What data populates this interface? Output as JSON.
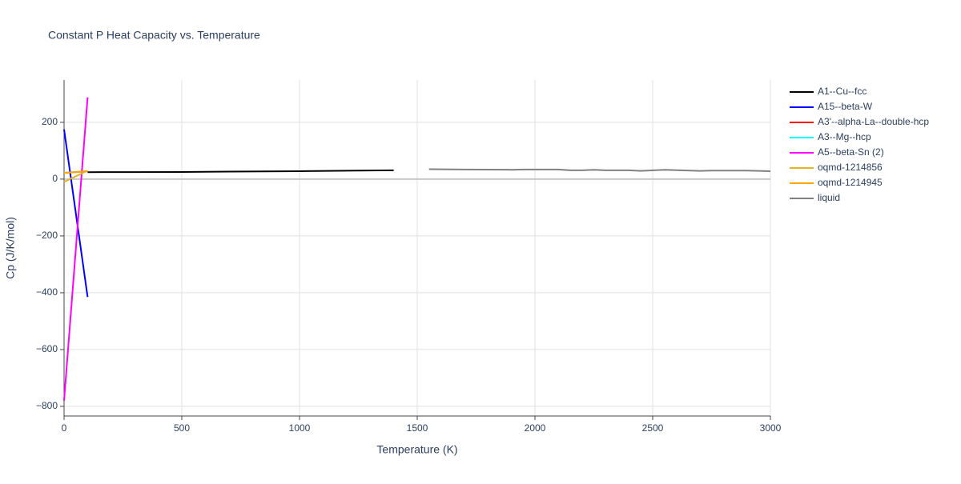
{
  "chart_data": {
    "type": "line",
    "title": "Constant P Heat Capacity vs. Temperature",
    "x_label": "Temperature (K)",
    "y_label": "Cp (J/K/mol)",
    "xlim": [
      0,
      3000
    ],
    "ylim": [
      -834,
      349
    ],
    "xticks": [
      0,
      500,
      1000,
      1500,
      2000,
      2500,
      3000
    ],
    "yticks": [
      {
        "value": -800,
        "label": "−800"
      },
      {
        "value": -600,
        "label": "−600"
      },
      {
        "value": -400,
        "label": "−400"
      },
      {
        "value": -200,
        "label": "−200"
      },
      0,
      200
    ],
    "grid": true,
    "legend": "right",
    "series": [
      {
        "name": "A1--Cu--fcc",
        "color": "#000000",
        "x": [
          100,
          300,
          500,
          700,
          1000,
          1200,
          1400
        ],
        "values": [
          24.5,
          24.8,
          25.2,
          26.5,
          28,
          29.5,
          31
        ]
      },
      {
        "name": "A15--beta-W",
        "color": "#0000ff",
        "x": [
          0,
          100
        ],
        "values": [
          175,
          -415
        ]
      },
      {
        "name": "A3'--alpha-La--double-hcp",
        "color": "#ff0000",
        "x": [
          0,
          100
        ],
        "values": [
          22,
          28
        ]
      },
      {
        "name": "A3--Mg--hcp",
        "color": "#00ffff",
        "x": [
          0,
          100
        ],
        "values": [
          22,
          28
        ]
      },
      {
        "name": "A5--beta-Sn (2)",
        "color": "#ff00ff",
        "x": [
          0,
          100
        ],
        "values": [
          -780,
          288
        ]
      },
      {
        "name": "oqmd-1214856",
        "color": "#e6b422",
        "x": [
          0,
          100
        ],
        "values": [
          -10,
          30
        ]
      },
      {
        "name": "oqmd-1214945",
        "color": "#ffa500",
        "x": [
          0,
          100
        ],
        "values": [
          22,
          28
        ]
      },
      {
        "name": "liquid",
        "color": "#808080",
        "x": [
          1550,
          1700,
          1900,
          1950,
          2100,
          2150,
          2200,
          2250,
          2300,
          2400,
          2450,
          2550,
          2700,
          2750,
          2900,
          3000
        ],
        "values": [
          35,
          34,
          33,
          34,
          34,
          31,
          31,
          33,
          31,
          31,
          29,
          33,
          29,
          30,
          30,
          28
        ]
      }
    ]
  }
}
